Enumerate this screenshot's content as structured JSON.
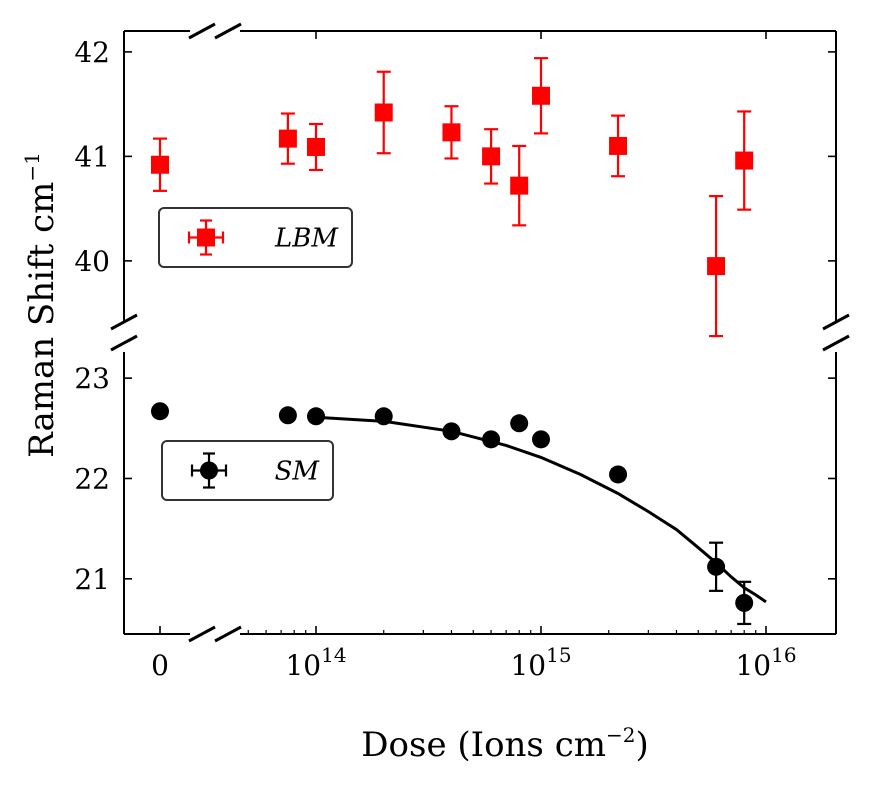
{
  "chart_data": {
    "type": "scatter",
    "xlabel": "Dose (Ions cm",
    "xlabel_sup": "−2",
    "xlabel_close": ")",
    "ylabel": "Raman Shift cm",
    "ylabel_sup": "−1",
    "x_ticks": [
      {
        "label": "0",
        "value": 0
      },
      {
        "label": "10",
        "sup": "14",
        "value": 100000000000000.0
      },
      {
        "label": "10",
        "sup": "15",
        "value": 1000000000000000.0
      },
      {
        "label": "10",
        "sup": "16",
        "value": 1e+16
      }
    ],
    "upper_panel": {
      "ylim": [
        39.3,
        42.2
      ],
      "yticks": [
        "40",
        "41",
        "42"
      ],
      "series": {
        "name": "LBM",
        "color": "#ff0000",
        "marker": "square",
        "points": [
          {
            "x": 0,
            "y": 40.92,
            "err": 0.25
          },
          {
            "x": 75000000000000.0,
            "y": 41.17,
            "err": 0.24
          },
          {
            "x": 100000000000000.0,
            "y": 41.09,
            "err": 0.22
          },
          {
            "x": 200000000000000.0,
            "y": 41.42,
            "err": 0.39
          },
          {
            "x": 400000000000000.0,
            "y": 41.23,
            "err": 0.25
          },
          {
            "x": 600000000000000.0,
            "y": 41.0,
            "err": 0.26
          },
          {
            "x": 800000000000000.0,
            "y": 40.72,
            "err": 0.38
          },
          {
            "x": 1000000000000000.0,
            "y": 41.58,
            "err": 0.36
          },
          {
            "x": 2200000000000000.0,
            "y": 41.1,
            "err": 0.29
          },
          {
            "x": 6000000000000000.0,
            "y": 39.95,
            "err": 0.67
          },
          {
            "x": 8000000000000000.0,
            "y": 40.96,
            "err": 0.47
          }
        ]
      }
    },
    "lower_panel": {
      "ylim": [
        20.45,
        23.4
      ],
      "yticks": [
        "21",
        "22",
        "23"
      ],
      "series": {
        "name": "SM",
        "color": "#000000",
        "marker": "circle",
        "points": [
          {
            "x": 0,
            "y": 22.67,
            "err": 0
          },
          {
            "x": 75000000000000.0,
            "y": 22.63,
            "err": 0
          },
          {
            "x": 100000000000000.0,
            "y": 22.62,
            "err": 0
          },
          {
            "x": 200000000000000.0,
            "y": 22.62,
            "err": 0
          },
          {
            "x": 400000000000000.0,
            "y": 22.47,
            "err": 0
          },
          {
            "x": 600000000000000.0,
            "y": 22.39,
            "err": 0
          },
          {
            "x": 800000000000000.0,
            "y": 22.55,
            "err": 0
          },
          {
            "x": 1000000000000000.0,
            "y": 22.39,
            "err": 0
          },
          {
            "x": 2200000000000000.0,
            "y": 22.04,
            "err": 0.05
          },
          {
            "x": 6000000000000000.0,
            "y": 21.12,
            "err": 0.24
          },
          {
            "x": 8000000000000000.0,
            "y": 20.76,
            "err": 0.21
          }
        ]
      },
      "fit": {
        "color": "#000000",
        "x": [
          100000000000000.0,
          200000000000000.0,
          400000000000000.0,
          700000000000000.0,
          1000000000000000.0,
          1500000000000000.0,
          2200000000000000.0,
          3000000000000000.0,
          4000000000000000.0,
          5000000000000000.0,
          6000000000000000.0,
          7000000000000000.0,
          8000000000000000.0,
          9000000000000000.0,
          1e+16
        ],
        "y": [
          22.61,
          22.57,
          22.47,
          22.33,
          22.21,
          22.04,
          21.85,
          21.67,
          21.49,
          21.31,
          21.16,
          21.02,
          20.91,
          20.84,
          20.77
        ]
      }
    },
    "legends": [
      {
        "label": "LBM",
        "placement": "upper-panel-left"
      },
      {
        "label": "SM",
        "placement": "lower-panel-left"
      }
    ]
  }
}
